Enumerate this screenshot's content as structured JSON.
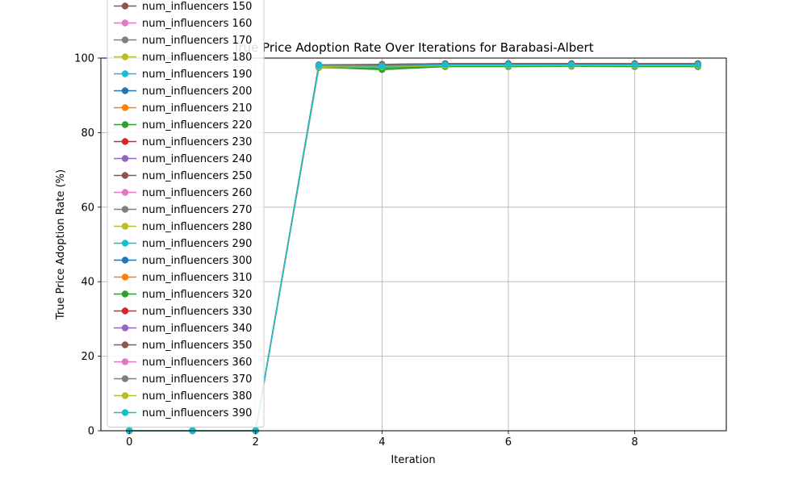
{
  "chart_data": {
    "type": "line",
    "title": "True Price Adoption Rate Over Iterations for Barabasi-Albert",
    "xlabel": "Iteration",
    "ylabel": "True Price Adoption Rate (%)",
    "xlim": [
      -0.45,
      9.45
    ],
    "ylim": [
      0,
      100
    ],
    "xticks": [
      0,
      2,
      4,
      6,
      8
    ],
    "yticks": [
      0,
      20,
      40,
      60,
      80,
      100
    ],
    "grid": true,
    "legend_position": "upper-left",
    "x": [
      0,
      1,
      2,
      3,
      4,
      5,
      6,
      7,
      8,
      9
    ],
    "series": [
      {
        "name": "num_influencers 150",
        "color": "#8c564b",
        "values": [
          0,
          0,
          0,
          97.5,
          97.4,
          97.9,
          97.9,
          97.9,
          97.9,
          97.9
        ]
      },
      {
        "name": "num_influencers 160",
        "color": "#e377c2",
        "values": [
          0,
          0,
          0,
          97.8,
          97.6,
          98.0,
          98.0,
          98.0,
          98.0,
          98.0
        ]
      },
      {
        "name": "num_influencers 170",
        "color": "#7f7f7f",
        "values": [
          0,
          0,
          0,
          97.6,
          97.8,
          98.1,
          98.1,
          98.1,
          98.1,
          98.1
        ]
      },
      {
        "name": "num_influencers 180",
        "color": "#bcbd22",
        "values": [
          0,
          0,
          0,
          97.4,
          97.2,
          97.8,
          97.8,
          97.8,
          97.8,
          97.8
        ]
      },
      {
        "name": "num_influencers 190",
        "color": "#17becf",
        "values": [
          0,
          0,
          0,
          97.9,
          97.5,
          98.0,
          98.0,
          98.0,
          98.0,
          98.0
        ]
      },
      {
        "name": "num_influencers 200",
        "color": "#1f77b4",
        "values": [
          0,
          0,
          0,
          98.2,
          98.3,
          98.5,
          98.5,
          98.5,
          98.5,
          98.5
        ]
      },
      {
        "name": "num_influencers 210",
        "color": "#ff7f0e",
        "values": [
          0,
          0,
          0,
          97.7,
          97.5,
          98.0,
          98.0,
          98.0,
          98.0,
          98.0
        ]
      },
      {
        "name": "num_influencers 220",
        "color": "#2ca02c",
        "values": [
          0,
          0,
          0,
          97.6,
          96.9,
          97.7,
          97.7,
          97.8,
          97.7,
          97.7
        ]
      },
      {
        "name": "num_influencers 230",
        "color": "#d62728",
        "values": [
          0,
          0,
          0,
          97.8,
          97.7,
          98.1,
          98.1,
          98.1,
          98.1,
          98.1
        ]
      },
      {
        "name": "num_influencers 240",
        "color": "#9467bd",
        "values": [
          0,
          0,
          0,
          98.0,
          98.0,
          98.3,
          98.3,
          98.3,
          98.3,
          98.3
        ]
      },
      {
        "name": "num_influencers 250",
        "color": "#8c564b",
        "values": [
          0,
          0,
          0,
          97.9,
          98.1,
          98.4,
          98.4,
          98.4,
          98.4,
          98.4
        ]
      },
      {
        "name": "num_influencers 260",
        "color": "#e377c2",
        "values": [
          0,
          0,
          0,
          97.7,
          97.9,
          98.2,
          98.2,
          98.2,
          98.2,
          98.2
        ]
      },
      {
        "name": "num_influencers 270",
        "color": "#7f7f7f",
        "values": [
          0,
          0,
          0,
          97.5,
          97.6,
          98.0,
          98.0,
          98.0,
          98.0,
          98.0
        ]
      },
      {
        "name": "num_influencers 280",
        "color": "#bcbd22",
        "values": [
          0,
          0,
          0,
          97.6,
          97.4,
          97.9,
          97.9,
          97.9,
          97.9,
          97.9
        ]
      },
      {
        "name": "num_influencers 290",
        "color": "#17becf",
        "values": [
          0,
          0,
          0,
          97.8,
          97.7,
          98.1,
          98.1,
          98.1,
          98.1,
          98.1
        ]
      },
      {
        "name": "num_influencers 300",
        "color": "#1f77b4",
        "values": [
          0,
          0,
          0,
          98.1,
          98.2,
          98.4,
          98.4,
          98.4,
          98.4,
          98.4
        ]
      },
      {
        "name": "num_influencers 310",
        "color": "#ff7f0e",
        "values": [
          0,
          0,
          0,
          97.9,
          97.9,
          98.2,
          98.2,
          98.2,
          98.2,
          98.2
        ]
      },
      {
        "name": "num_influencers 320",
        "color": "#2ca02c",
        "values": [
          0,
          0,
          0,
          97.7,
          97.3,
          97.9,
          97.9,
          97.9,
          97.9,
          97.9
        ]
      },
      {
        "name": "num_influencers 330",
        "color": "#d62728",
        "values": [
          0,
          0,
          0,
          98.0,
          98.1,
          98.3,
          98.3,
          98.3,
          98.3,
          98.3
        ]
      },
      {
        "name": "num_influencers 340",
        "color": "#9467bd",
        "values": [
          0,
          0,
          0,
          97.9,
          98.0,
          98.3,
          98.3,
          98.3,
          98.3,
          98.3
        ]
      },
      {
        "name": "num_influencers 350",
        "color": "#8c564b",
        "values": [
          0,
          0,
          0,
          98.1,
          98.3,
          98.5,
          98.5,
          98.5,
          98.5,
          98.5
        ]
      },
      {
        "name": "num_influencers 360",
        "color": "#e377c2",
        "values": [
          0,
          0,
          0,
          97.8,
          97.8,
          98.1,
          98.1,
          98.1,
          98.1,
          98.1
        ]
      },
      {
        "name": "num_influencers 370",
        "color": "#7f7f7f",
        "values": [
          0,
          0,
          0,
          97.9,
          98.0,
          98.2,
          98.2,
          98.2,
          98.2,
          98.2
        ]
      },
      {
        "name": "num_influencers 380",
        "color": "#bcbd22",
        "values": [
          0,
          0,
          0,
          97.7,
          97.6,
          98.0,
          98.0,
          98.0,
          98.0,
          98.0
        ]
      },
      {
        "name": "num_influencers 390",
        "color": "#17becf",
        "values": [
          0,
          0,
          0,
          98.0,
          97.8,
          98.2,
          98.2,
          98.2,
          98.2,
          98.2
        ]
      }
    ]
  }
}
